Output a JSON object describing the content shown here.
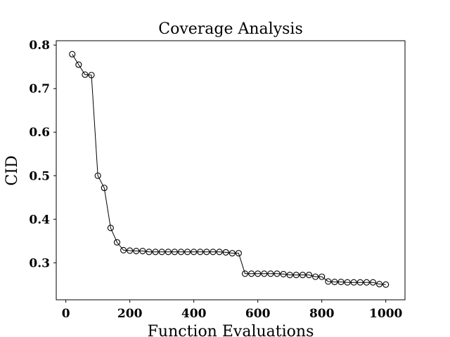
{
  "chart_data": {
    "type": "line",
    "title": "Coverage Analysis",
    "xlabel": "Function Evaluations",
    "ylabel": "CID",
    "xlim": [
      -30,
      1060
    ],
    "ylim": [
      0.215,
      0.81
    ],
    "xticks": [
      0,
      200,
      400,
      600,
      800,
      1000
    ],
    "yticks": [
      0.3,
      0.4,
      0.5,
      0.6,
      0.7,
      0.8
    ],
    "xtick_labels": [
      "0",
      "200",
      "400",
      "600",
      "800",
      "1000"
    ],
    "ytick_labels": [
      "0.3",
      "0.4",
      "0.5",
      "0.6",
      "0.7",
      "0.8"
    ],
    "grid": false,
    "marker": "open-circle",
    "line_color": "#000000",
    "series": [
      {
        "x": [
          20,
          40,
          60,
          80,
          100,
          120,
          140,
          160,
          180,
          200,
          220,
          240,
          260,
          280,
          300,
          320,
          340,
          360,
          380,
          400,
          420,
          440,
          460,
          480,
          500,
          520,
          540,
          560,
          580,
          600,
          620,
          640,
          660,
          680,
          700,
          720,
          740,
          760,
          780,
          800,
          820,
          840,
          860,
          880,
          900,
          920,
          940,
          960,
          980,
          1000
        ],
        "values": [
          0.779,
          0.755,
          0.732,
          0.731,
          0.5,
          0.472,
          0.38,
          0.347,
          0.329,
          0.328,
          0.327,
          0.327,
          0.325,
          0.325,
          0.325,
          0.325,
          0.325,
          0.325,
          0.325,
          0.325,
          0.325,
          0.325,
          0.325,
          0.325,
          0.324,
          0.322,
          0.322,
          0.275,
          0.275,
          0.275,
          0.275,
          0.275,
          0.275,
          0.274,
          0.272,
          0.272,
          0.272,
          0.272,
          0.268,
          0.268,
          0.257,
          0.256,
          0.256,
          0.255,
          0.255,
          0.255,
          0.255,
          0.255,
          0.251,
          0.25
        ]
      }
    ]
  }
}
